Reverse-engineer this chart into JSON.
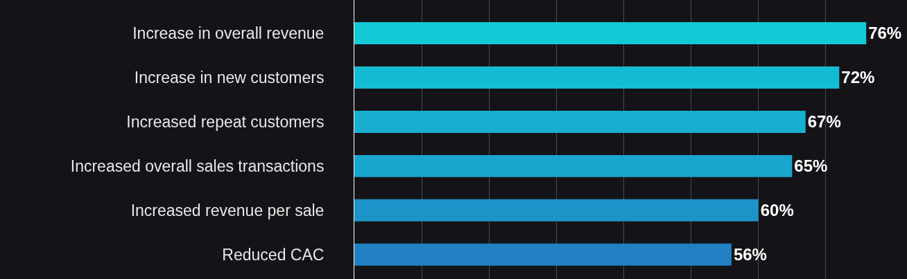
{
  "chart_data": {
    "type": "bar",
    "orientation": "horizontal",
    "categories": [
      "Increase in overall revenue",
      "Increase in new customers",
      "Increased repeat customers",
      "Increased overall sales transactions",
      "Increased revenue per sale",
      "Reduced CAC"
    ],
    "values": [
      76,
      72,
      67,
      65,
      60,
      56
    ],
    "value_labels": [
      "76%",
      "72%",
      "67%",
      "65%",
      "60%",
      "56%"
    ],
    "colors": [
      "#12c9d6",
      "#14bcd3",
      "#17afd0",
      "#19a6cd",
      "#1c94c8",
      "#2080c2"
    ],
    "grid": "x",
    "tick_labels": "y"
  }
}
